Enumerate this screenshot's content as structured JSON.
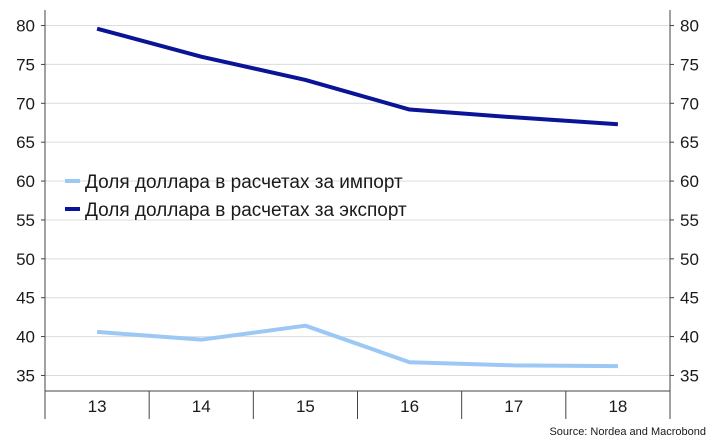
{
  "chart_data": {
    "type": "line",
    "categories": [
      "13",
      "14",
      "15",
      "16",
      "17",
      "18"
    ],
    "series": [
      {
        "name": "Доля доллара в расчетах за импорт",
        "color": "#9cc8f5",
        "values": [
          40.6,
          39.6,
          41.4,
          36.7,
          36.3,
          36.2
        ]
      },
      {
        "name": "Доля доллара в расчетах за экспорт",
        "color": "#0a1496",
        "values": [
          79.6,
          76.0,
          73.0,
          69.2,
          68.2,
          67.3
        ]
      }
    ],
    "ylim": [
      33,
      82
    ],
    "yticks": [
      "35",
      "40",
      "45",
      "50",
      "55",
      "60",
      "65",
      "70",
      "75",
      "80"
    ],
    "grid": true,
    "legend_position": "left-middle",
    "source": "Source: Nordea and Macrobond"
  }
}
